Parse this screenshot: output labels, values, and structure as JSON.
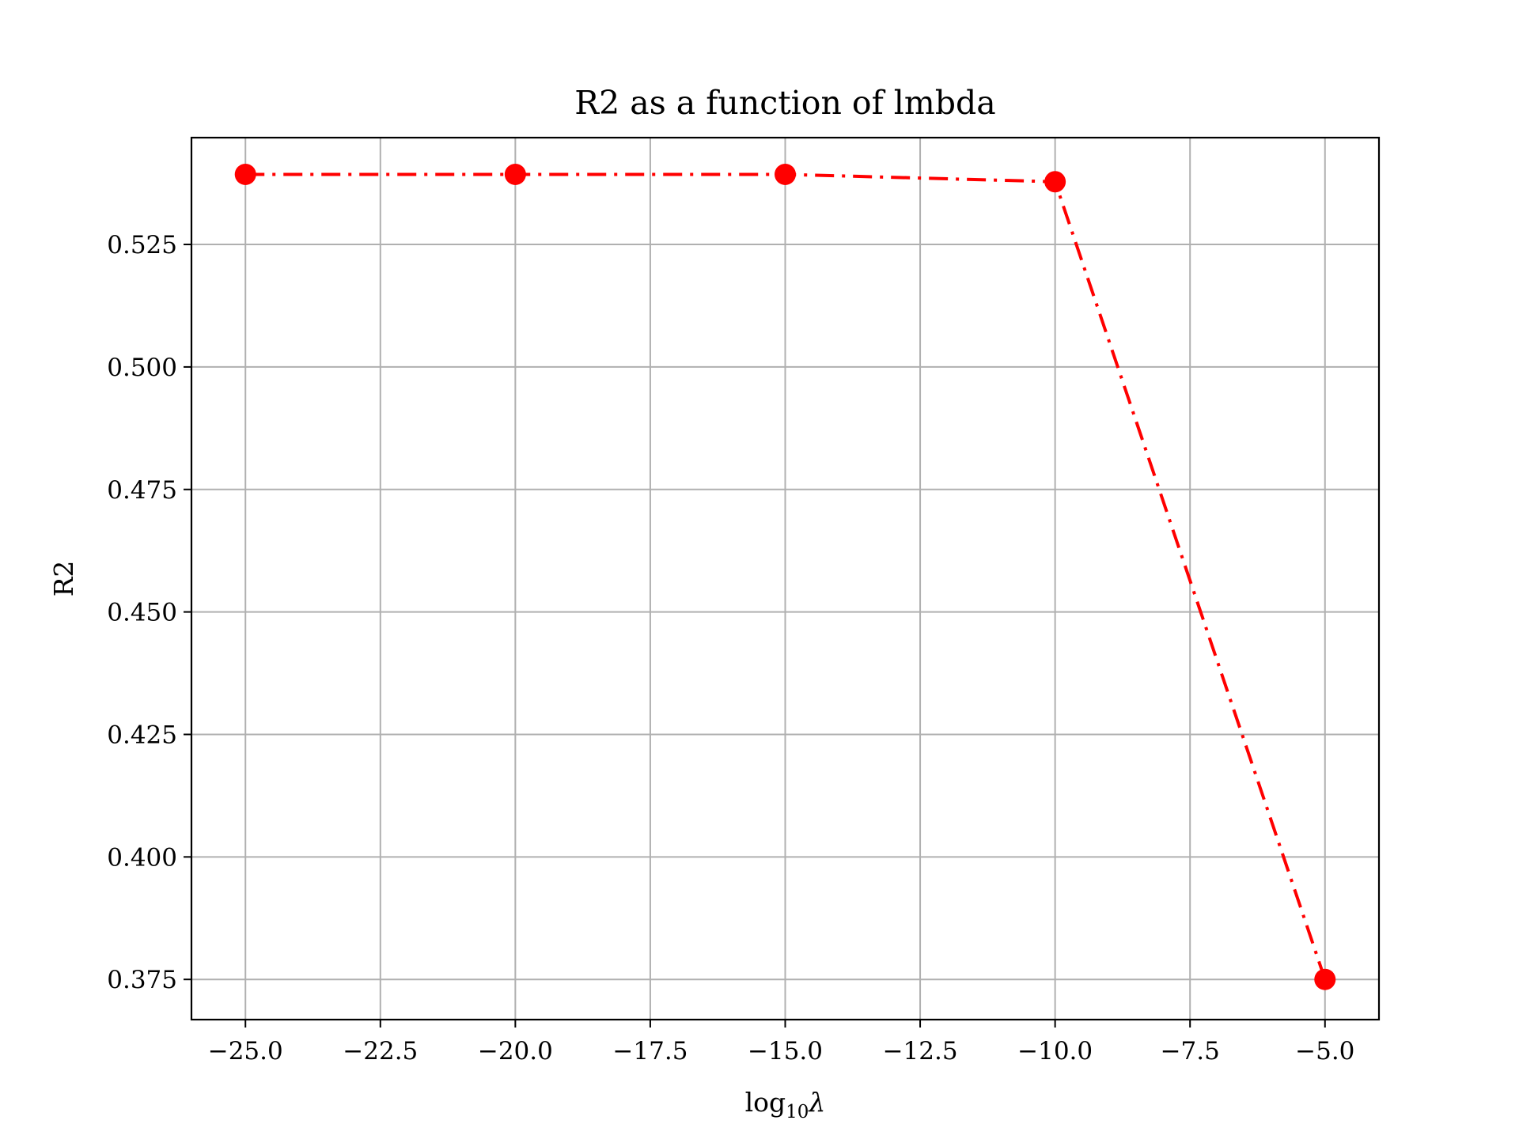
{
  "chart_data": {
    "type": "line",
    "title": "R2 as a function of lmbda",
    "xlabel": {
      "main": "log",
      "subscript": "10",
      "symbol": "λ"
    },
    "ylabel": "R2",
    "xlim": [
      -26.0,
      -4.0
    ],
    "ylim": [
      0.3668,
      0.5468
    ],
    "x_ticks": [
      -25.0,
      -22.5,
      -20.0,
      -17.5,
      -15.0,
      -12.5,
      -10.0,
      -7.5,
      -5.0
    ],
    "x_tick_labels": [
      "−25.0",
      "−22.5",
      "−20.0",
      "−17.5",
      "−15.0",
      "−12.5",
      "−10.0",
      "−7.5",
      "−5.0"
    ],
    "y_ticks": [
      0.375,
      0.4,
      0.425,
      0.45,
      0.475,
      0.5,
      0.525
    ],
    "y_tick_labels": [
      "0.375",
      "0.400",
      "0.425",
      "0.450",
      "0.475",
      "0.500",
      "0.525"
    ],
    "grid": true,
    "series": [
      {
        "x": [
          -25,
          -20,
          -15,
          -10,
          -5
        ],
        "y": [
          0.5393,
          0.5393,
          0.5393,
          0.5378,
          0.375
        ],
        "color": "#ff0000",
        "line_style": "dash-dot",
        "marker": "circle"
      }
    ]
  }
}
